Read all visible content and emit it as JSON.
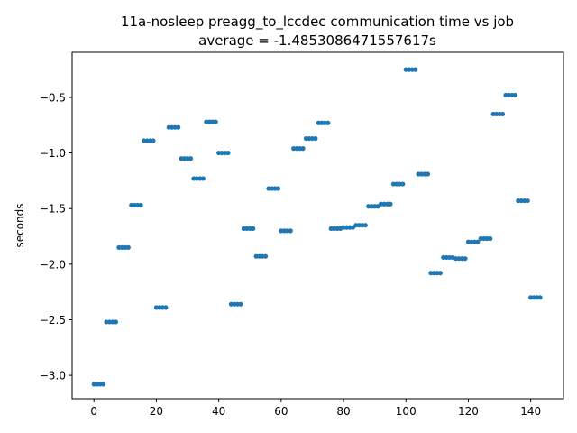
{
  "chart_data": {
    "type": "scatter",
    "title_line1": "11a-nosleep preagg_to_lccdec communication time vs job",
    "title_line2": "average = -1.4853086471557617s",
    "xlabel": "",
    "ylabel": "seconds",
    "xlim": [
      -7,
      150.5
    ],
    "ylim": [
      -3.21,
      -0.095
    ],
    "x_ticks": [
      0,
      20,
      40,
      60,
      80,
      100,
      120,
      140
    ],
    "y_ticks": [
      -3.0,
      -2.5,
      -2.0,
      -1.5,
      -1.0,
      -0.5
    ],
    "x_tick_labels": [
      "0",
      "20",
      "40",
      "60",
      "80",
      "100",
      "120",
      "140"
    ],
    "y_tick_labels": [
      "−3.0",
      "−2.5",
      "−2.0",
      "−1.5",
      "−1.0",
      "−0.5"
    ],
    "grid": false,
    "marker_color": "#1f77b4",
    "series": [
      {
        "groups": [
          {
            "x_start": 0,
            "y": -3.08
          },
          {
            "x_start": 4,
            "y": -2.52
          },
          {
            "x_start": 8,
            "y": -1.85
          },
          {
            "x_start": 12,
            "y": -1.47
          },
          {
            "x_start": 16,
            "y": -0.89
          },
          {
            "x_start": 20,
            "y": -2.39
          },
          {
            "x_start": 24,
            "y": -0.77
          },
          {
            "x_start": 28,
            "y": -1.05
          },
          {
            "x_start": 32,
            "y": -1.23
          },
          {
            "x_start": 36,
            "y": -0.72
          },
          {
            "x_start": 40,
            "y": -1.0
          },
          {
            "x_start": 44,
            "y": -2.36
          },
          {
            "x_start": 48,
            "y": -1.68
          },
          {
            "x_start": 52,
            "y": -1.93
          },
          {
            "x_start": 56,
            "y": -1.32
          },
          {
            "x_start": 60,
            "y": -1.7
          },
          {
            "x_start": 64,
            "y": -0.96
          },
          {
            "x_start": 68,
            "y": -0.87
          },
          {
            "x_start": 72,
            "y": -0.73
          },
          {
            "x_start": 76,
            "y": -1.68
          },
          {
            "x_start": 80,
            "y": -1.67
          },
          {
            "x_start": 84,
            "y": -1.65
          },
          {
            "x_start": 88,
            "y": -1.48
          },
          {
            "x_start": 92,
            "y": -1.46
          },
          {
            "x_start": 96,
            "y": -1.28
          },
          {
            "x_start": 100,
            "y": -0.25
          },
          {
            "x_start": 104,
            "y": -1.19
          },
          {
            "x_start": 108,
            "y": -2.08
          },
          {
            "x_start": 112,
            "y": -1.94
          },
          {
            "x_start": 116,
            "y": -1.95
          },
          {
            "x_start": 120,
            "y": -1.8
          },
          {
            "x_start": 124,
            "y": -1.77
          },
          {
            "x_start": 128,
            "y": -0.65
          },
          {
            "x_start": 132,
            "y": -0.48
          },
          {
            "x_start": 136,
            "y": -1.43
          },
          {
            "x_start": 140,
            "y": -2.3
          }
        ],
        "points_per_group": 4
      }
    ]
  }
}
